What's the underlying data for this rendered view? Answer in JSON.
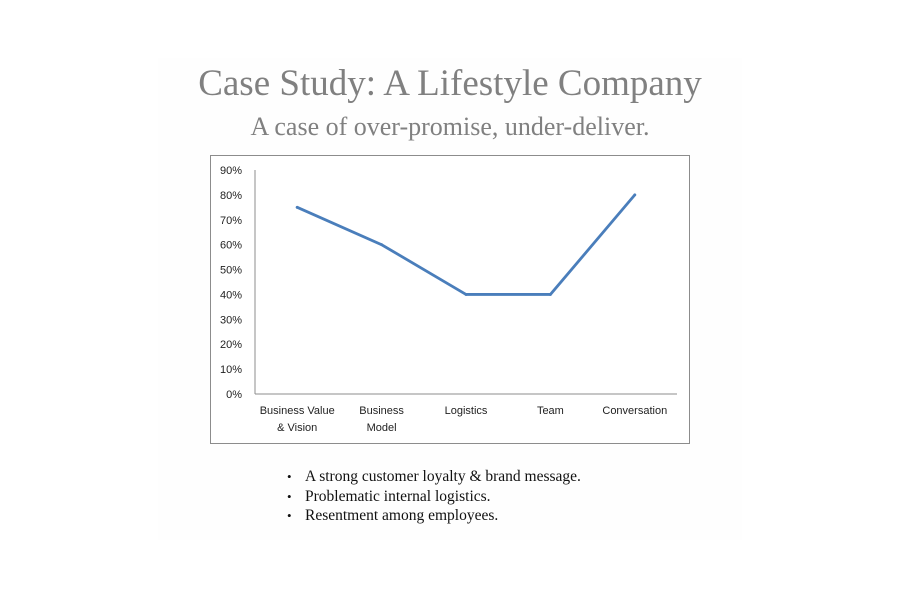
{
  "slide": {
    "title": "Case Study: A Lifestyle Company",
    "subtitle": "A case of over-promise, under-deliver.",
    "bullets": [
      "A strong customer loyalty & brand message.",
      "Problematic internal logistics.",
      "Resentment among employees."
    ]
  },
  "chart_data": {
    "type": "line",
    "title": "",
    "xlabel": "",
    "ylabel": "",
    "categories": [
      [
        "Business Value",
        "& Vision"
      ],
      [
        "Business",
        "Model"
      ],
      [
        "Logistics"
      ],
      [
        "Team"
      ],
      [
        "Conversation"
      ]
    ],
    "series": [
      {
        "values": [
          0.75,
          0.6,
          0.4,
          0.4,
          0.8
        ],
        "color": "#4a7ebb"
      }
    ],
    "ylim": [
      0,
      0.9
    ],
    "yticks": [
      "0%",
      "10%",
      "20%",
      "30%",
      "40%",
      "50%",
      "60%",
      "70%",
      "80%",
      "90%"
    ],
    "grid": false,
    "legend": "none"
  }
}
